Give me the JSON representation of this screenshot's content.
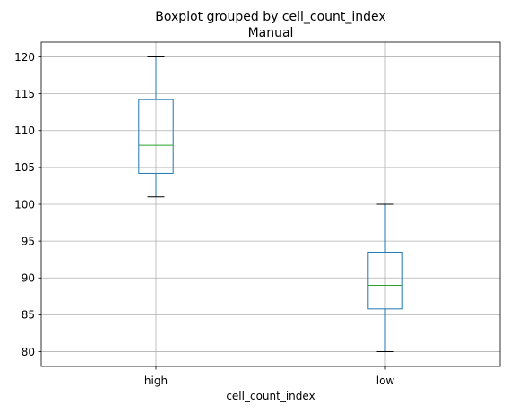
{
  "chart_data": {
    "type": "boxplot",
    "suptitle": "Boxplot grouped by cell_count_index",
    "title": "Manual",
    "xlabel": "cell_count_index",
    "ylabel": "",
    "categories": [
      "high",
      "low"
    ],
    "boxes": [
      {
        "category": "high",
        "whisker_low": 101,
        "q1": 104.2,
        "median": 108,
        "q3": 114.2,
        "whisker_high": 120
      },
      {
        "category": "low",
        "whisker_low": 80,
        "q1": 85.8,
        "median": 89,
        "q3": 93.5,
        "whisker_high": 100
      }
    ],
    "ylim": [
      78,
      122
    ],
    "yticks": [
      80,
      85,
      90,
      95,
      100,
      105,
      110,
      115,
      120
    ],
    "grid": true,
    "colors": {
      "box": "#1f77b4",
      "median": "#2ca02c",
      "whisker": "#000000",
      "grid": "#b0b0b0"
    }
  }
}
